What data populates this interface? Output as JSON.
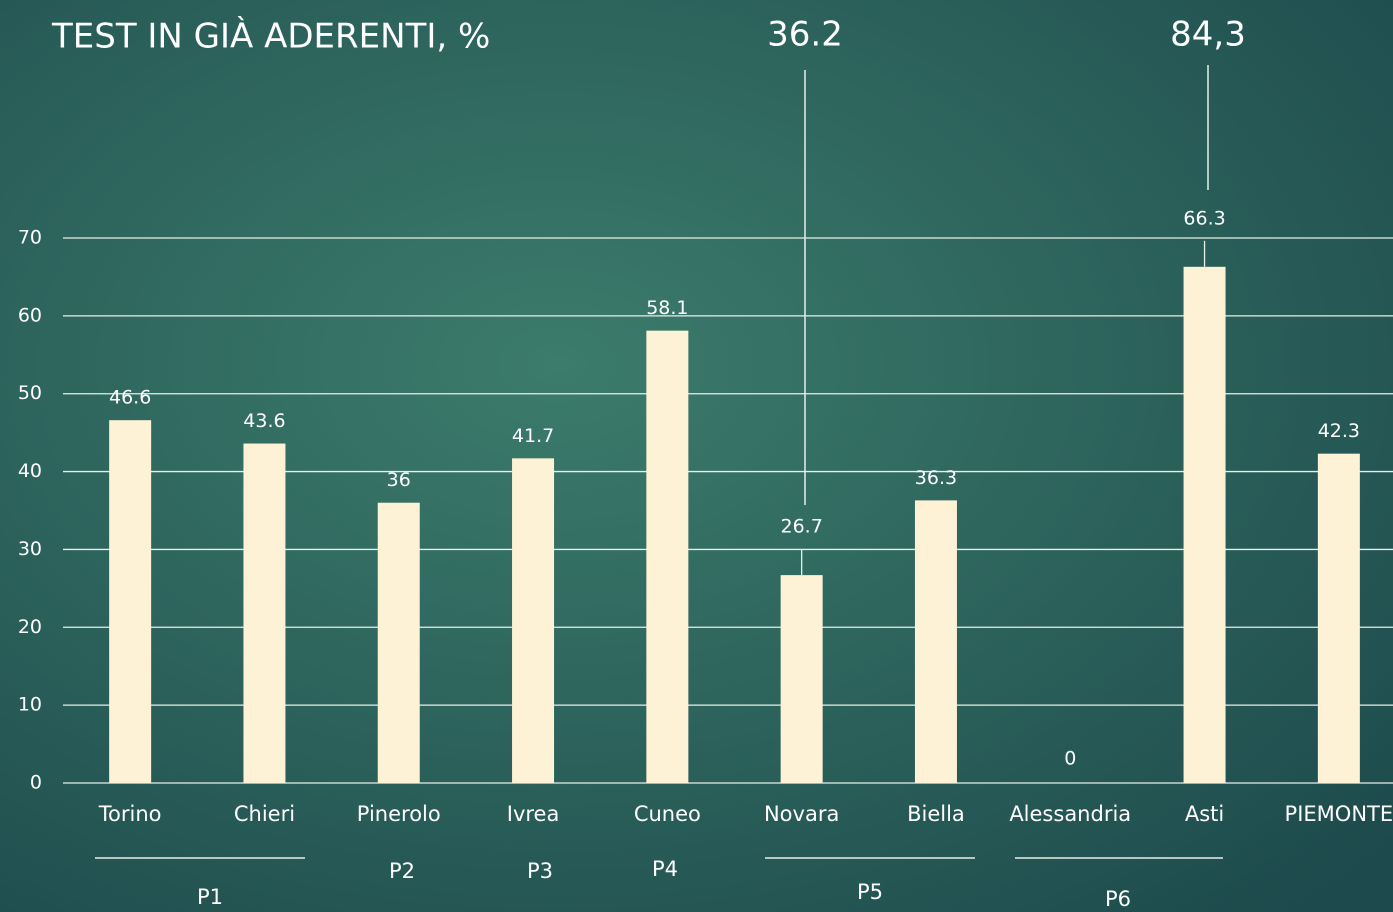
{
  "chart_data": {
    "type": "bar",
    "title": "TEST IN GIÀ ADERENTI, %",
    "categories": [
      "Torino",
      "Chieri",
      "Pinerolo",
      "Ivrea",
      "Cuneo",
      "Novara",
      "Biella",
      "Alessandria",
      "Asti",
      "PIEMONTE"
    ],
    "values": [
      46.6,
      43.6,
      36,
      41.7,
      58.1,
      26.7,
      36.3,
      0,
      66.3,
      42.3
    ],
    "color": "#fdf2d6",
    "ylim": [
      0,
      70
    ],
    "yticks": [
      0,
      10,
      20,
      30,
      40,
      50,
      60,
      70
    ],
    "grid": true,
    "annotations": [
      "36.2",
      "84,3"
    ],
    "groups": [
      "P1",
      "P2",
      "P3",
      "P4",
      "P5",
      "P6"
    ]
  }
}
